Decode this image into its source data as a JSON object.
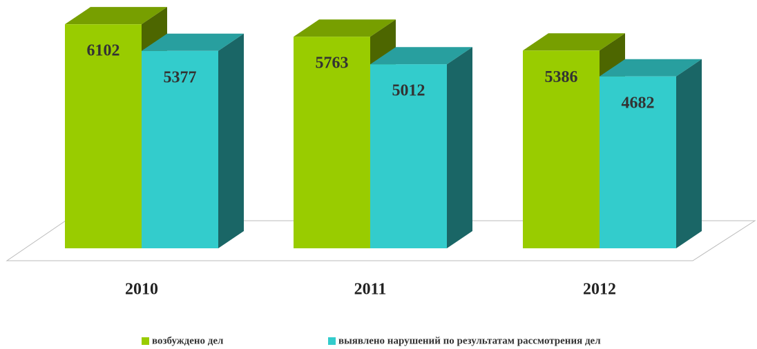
{
  "chart_data": {
    "type": "bar3d",
    "categories": [
      "2010",
      "2011",
      "2012"
    ],
    "series": [
      {
        "name": "возбуждено дел",
        "color": "#99cc00",
        "values": [
          6102,
          5763,
          5386
        ]
      },
      {
        "name": "выявлено нарушений по результатам рассмотрения дел",
        "color": "#33cccc",
        "values": [
          5377,
          5012,
          4682
        ]
      }
    ],
    "ylim": [
      0,
      6500
    ]
  }
}
